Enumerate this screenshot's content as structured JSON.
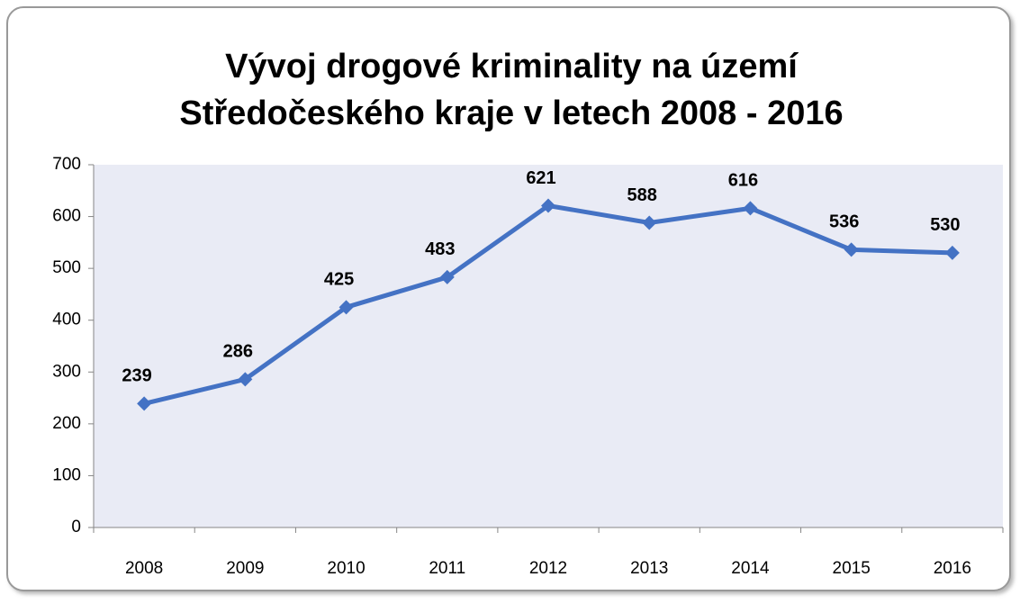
{
  "chart_data": {
    "type": "line",
    "title": [
      "Vývoj drogové kriminality na území",
      "Středočeského kraje v letech 2008 - 2016"
    ],
    "categories": [
      "2008",
      "2009",
      "2010",
      "2011",
      "2012",
      "2013",
      "2014",
      "2015",
      "2016"
    ],
    "values": [
      239,
      286,
      425,
      483,
      621,
      588,
      616,
      536,
      530
    ],
    "color": "#4472c4",
    "ylim": [
      0,
      700
    ],
    "yticks": [
      0,
      100,
      200,
      300,
      400,
      500,
      600,
      700
    ],
    "grid": false
  }
}
